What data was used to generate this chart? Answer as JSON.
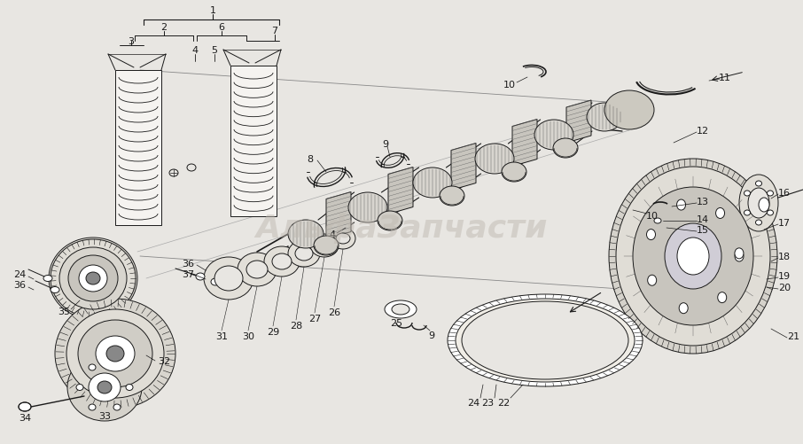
{
  "bg_color": "#e8e6e2",
  "watermark_text": "АльфаЗапчасти",
  "watermark_color": "#c0bab2",
  "watermark_alpha": 0.5,
  "watermark_fontsize": 26,
  "line_color": "#1a1a1a",
  "label_fontsize": 7.5,
  "fig_width": 9.06,
  "fig_height": 5.02,
  "lw": 0.7
}
